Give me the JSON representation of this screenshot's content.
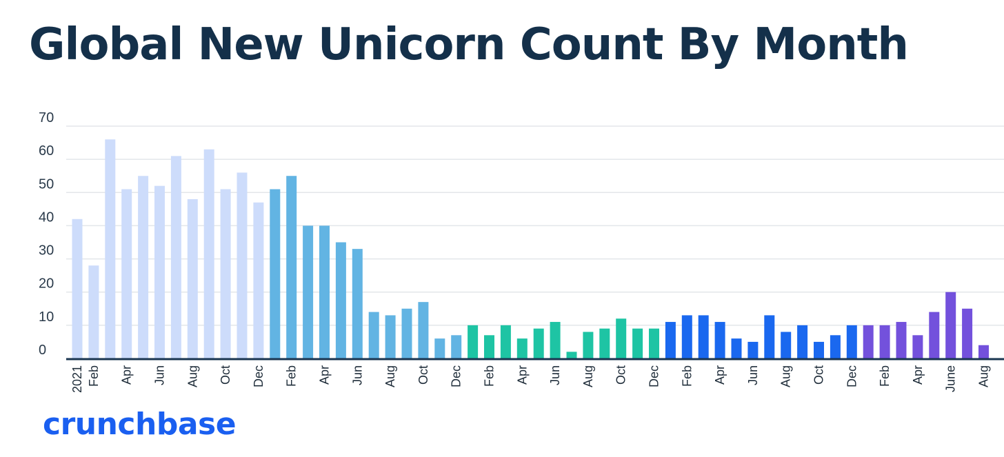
{
  "colors": {
    "title": "#14304a",
    "logo": "#1a5ff0",
    "axis": "#1a3550",
    "grid": "#e3e6ea",
    "period_colors": [
      "#cddcfb",
      "#62b4e3",
      "#1ec4a4",
      "#1a68ef",
      "#7351dc"
    ]
  },
  "logo": {
    "text": "crunchbase"
  },
  "chart_data": {
    "type": "bar",
    "title": "Global New Unicorn Count By Month",
    "xlabel": "",
    "ylabel": "",
    "ylim": [
      0,
      70
    ],
    "yticks": [
      0,
      10,
      20,
      30,
      40,
      50,
      60,
      70
    ],
    "grid": true,
    "legend": "none",
    "categories": [
      "2021",
      "Feb",
      "Mar",
      "Apr",
      "May",
      "Jun",
      "Jul",
      "Aug",
      "Sep",
      "Oct",
      "Nov",
      "Dec",
      "Jan",
      "Feb",
      "Mar",
      "Apr",
      "May",
      "Jun",
      "Jul",
      "Aug",
      "Sep",
      "Oct",
      "Nov",
      "Dec",
      "Jan",
      "Feb",
      "Mar",
      "Apr",
      "May",
      "Jun",
      "Jul",
      "Aug",
      "Sep",
      "Oct",
      "Nov",
      "Dec",
      "Jan",
      "Feb",
      "Mar",
      "Apr",
      "May",
      "Jun",
      "Jul",
      "Aug",
      "Sep",
      "Oct",
      "Nov",
      "Dec",
      "Jan",
      "Feb",
      "Mar",
      "Apr",
      "May",
      "June",
      "Jul",
      "Aug"
    ],
    "tick_labels": [
      "2021",
      "Feb",
      "",
      "Apr",
      "",
      "Jun",
      "",
      "Aug",
      "",
      "Oct",
      "",
      "Dec",
      "",
      "Feb",
      "",
      "Apr",
      "",
      "Jun",
      "",
      "Aug",
      "",
      "Oct",
      "",
      "Dec",
      "",
      "Feb",
      "",
      "Apr",
      "",
      "Jun",
      "",
      "Aug",
      "",
      "Oct",
      "",
      "Dec",
      "",
      "Feb",
      "",
      "Apr",
      "",
      "Jun",
      "",
      "Aug",
      "",
      "Oct",
      "",
      "Dec",
      "",
      "Feb",
      "",
      "Apr",
      "",
      "June",
      "",
      "Aug"
    ],
    "values": [
      42,
      28,
      66,
      51,
      55,
      52,
      61,
      48,
      63,
      51,
      56,
      47,
      51,
      55,
      40,
      40,
      35,
      33,
      14,
      13,
      15,
      17,
      6,
      7,
      10,
      7,
      10,
      6,
      9,
      11,
      2,
      8,
      9,
      12,
      9,
      9,
      11,
      13,
      13,
      11,
      6,
      5,
      13,
      8,
      10,
      5,
      7,
      10,
      10,
      10,
      11,
      7,
      14,
      20,
      15,
      4
    ],
    "period": [
      0,
      0,
      0,
      0,
      0,
      0,
      0,
      0,
      0,
      0,
      0,
      0,
      1,
      1,
      1,
      1,
      1,
      1,
      1,
      1,
      1,
      1,
      1,
      1,
      2,
      2,
      2,
      2,
      2,
      2,
      2,
      2,
      2,
      2,
      2,
      2,
      3,
      3,
      3,
      3,
      3,
      3,
      3,
      3,
      3,
      3,
      3,
      3,
      4,
      4,
      4,
      4,
      4,
      4,
      4,
      4
    ]
  }
}
